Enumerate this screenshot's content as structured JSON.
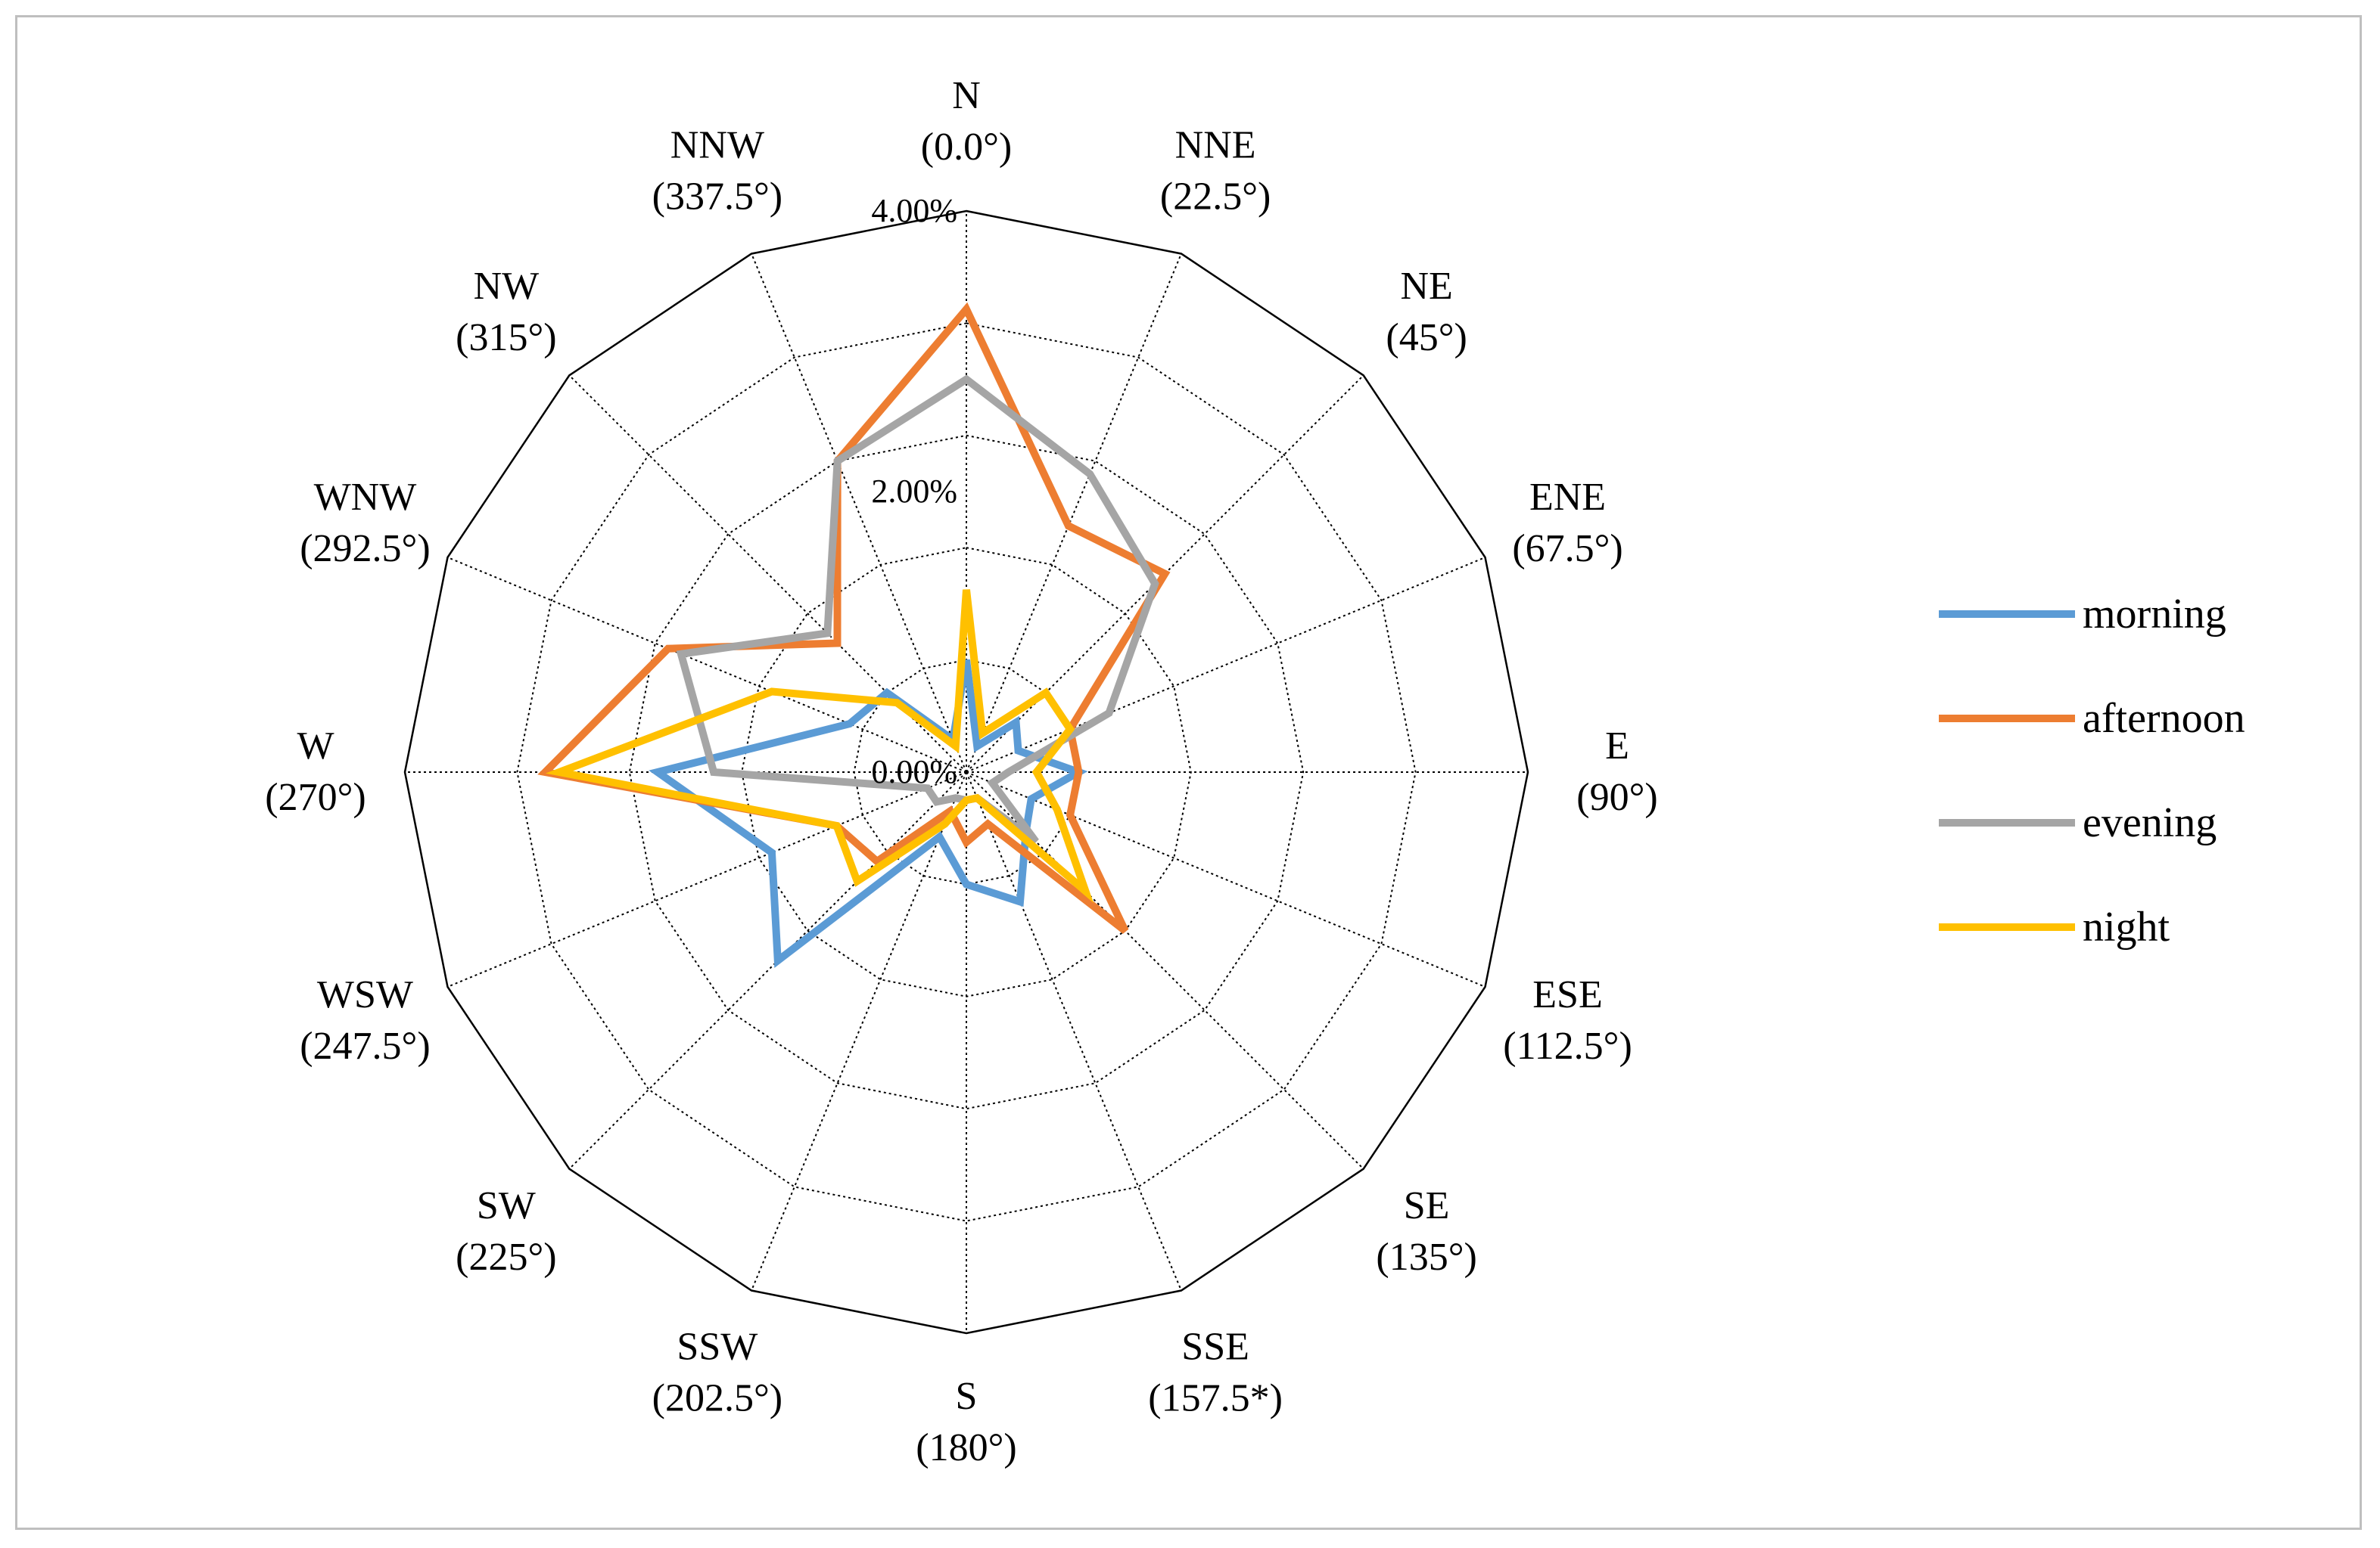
{
  "chart_data": {
    "type": "radar",
    "title": "",
    "directions": [
      {
        "name": "N",
        "angle": "(0.0°)"
      },
      {
        "name": "NNE",
        "angle": "(22.5°)"
      },
      {
        "name": "NE",
        "angle": "(45°)"
      },
      {
        "name": "ENE",
        "angle": "(67.5°)"
      },
      {
        "name": "E",
        "angle": "(90°)"
      },
      {
        "name": "ESE",
        "angle": "(112.5°)"
      },
      {
        "name": "SE",
        "angle": "(135°)"
      },
      {
        "name": "SSE",
        "angle": "(157.5*)"
      },
      {
        "name": "S",
        "angle": "(180°)"
      },
      {
        "name": "SSW",
        "angle": "(202.5°)"
      },
      {
        "name": "SW",
        "angle": "(225°)"
      },
      {
        "name": "WSW",
        "angle": "(247.5°)"
      },
      {
        "name": "W",
        "angle": "(270°)"
      },
      {
        "name": "WNW",
        "angle": "(292.5°)"
      },
      {
        "name": "NW",
        "angle": "(315°)"
      },
      {
        "name": "NNW",
        "angle": "(337.5°)"
      }
    ],
    "rmax": 4.0,
    "gridlines": [
      0.8,
      1.6,
      2.4,
      3.2,
      4.0
    ],
    "tick_labels": [
      {
        "value": 0.0,
        "label": "0.00%"
      },
      {
        "value": 2.0,
        "label": "2.00%"
      },
      {
        "value": 4.0,
        "label": "4.00%"
      }
    ],
    "series": [
      {
        "name": "morning",
        "color": "#5b9bd5",
        "values": [
          0.8,
          0.2,
          0.5,
          0.4,
          0.8,
          0.5,
          0.6,
          1.0,
          0.8,
          0.5,
          1.9,
          1.5,
          2.2,
          0.9,
          0.8,
          0.25
        ]
      },
      {
        "name": "afternoon",
        "color": "#ed7d31",
        "values": [
          3.3,
          1.9,
          2.0,
          0.8,
          0.8,
          0.8,
          1.6,
          0.4,
          0.5,
          0.3,
          0.9,
          1.0,
          3.0,
          2.3,
          1.3,
          2.4
        ]
      },
      {
        "name": "evening",
        "color": "#a5a5a5",
        "values": [
          2.8,
          2.3,
          1.9,
          1.1,
          0.3,
          0.2,
          0.7,
          0.2,
          0.2,
          0.2,
          0.3,
          0.3,
          1.8,
          2.2,
          1.4,
          2.4
        ]
      },
      {
        "name": "night",
        "color": "#ffc000",
        "values": [
          1.3,
          0.3,
          0.8,
          0.8,
          0.5,
          0.7,
          1.2,
          0.2,
          0.2,
          0.4,
          1.1,
          1.0,
          2.9,
          1.5,
          0.7,
          0.2
        ]
      }
    ]
  }
}
